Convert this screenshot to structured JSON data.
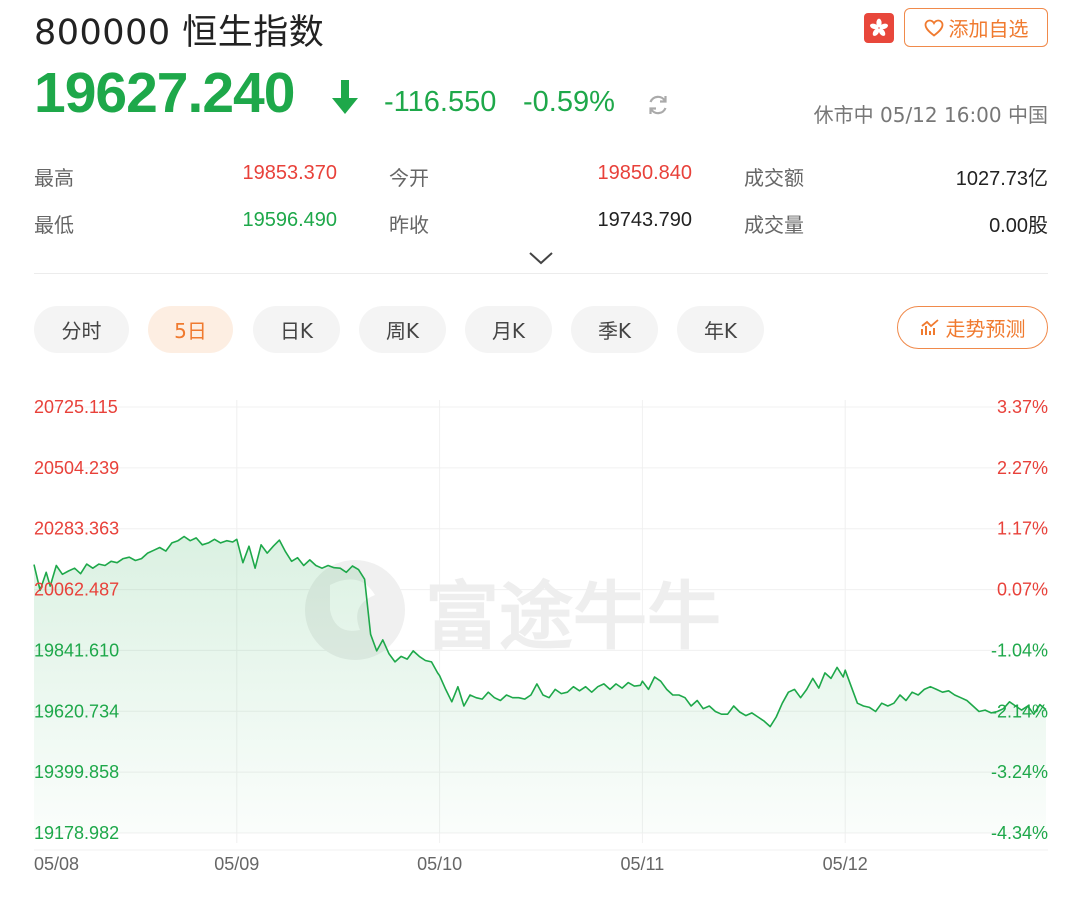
{
  "header": {
    "title": "800000 恒生指数",
    "watch_label": "添加自选",
    "market_flag_icon": "hong-kong-flag-icon"
  },
  "quote": {
    "price": "19627.240",
    "change": "-116.550",
    "change_pct": "-0.59%",
    "status": "休市中 05/12 16:00 中国"
  },
  "stats": {
    "high_label": "最高",
    "high_value": "19853.370",
    "low_label": "最低",
    "low_value": "19596.490",
    "open_label": "今开",
    "open_value": "19850.840",
    "prev_close_label": "昨收",
    "prev_close_value": "19743.790",
    "turnover_label": "成交额",
    "turnover_value": "1027.73亿",
    "volume_label": "成交量",
    "volume_value": "0.00股"
  },
  "tabs": [
    {
      "label": "分时"
    },
    {
      "label": "5日"
    },
    {
      "label": "日K"
    },
    {
      "label": "周K"
    },
    {
      "label": "月K"
    },
    {
      "label": "季K"
    },
    {
      "label": "年K"
    }
  ],
  "active_tab": "5日",
  "trend_label": "走势预测",
  "watermark": "富途牛牛",
  "colors": {
    "up": "#e8413a",
    "down": "#1ea84a",
    "accent": "#f07a2f"
  },
  "chart_data": {
    "type": "area",
    "y_ticks": [
      "20725.115",
      "20504.239",
      "20283.363",
      "20062.487",
      "19841.610",
      "19620.734",
      "19399.858",
      "19178.982"
    ],
    "y_tick_values": [
      20725.115,
      20504.239,
      20283.363,
      20062.487,
      19841.61,
      19620.734,
      19399.858,
      19178.982
    ],
    "pct_ticks": [
      "3.37%",
      "2.27%",
      "1.17%",
      "0.07%",
      "-1.04%",
      "-2.14%",
      "-3.24%",
      "-4.34%"
    ],
    "x_labels": [
      "05/08",
      "05/09",
      "05/10",
      "05/11",
      "05/12"
    ],
    "ylim": [
      19178.982,
      20725.115
    ],
    "grid": true,
    "series": [
      {
        "x": [
          0,
          0.03,
          0.06,
          0.08,
          0.11,
          0.14,
          0.17,
          0.2,
          0.23,
          0.26,
          0.29,
          0.32,
          0.35,
          0.38,
          0.41,
          0.44,
          0.47,
          0.5,
          0.53,
          0.56,
          0.59,
          0.62,
          0.65,
          0.68,
          0.71,
          0.74,
          0.77,
          0.8,
          0.83,
          0.86,
          0.89,
          0.92,
          0.95,
          0.98,
          1.0,
          1.03,
          1.06,
          1.09,
          1.12,
          1.15,
          1.18,
          1.21,
          1.24,
          1.27,
          1.3,
          1.33,
          1.36,
          1.39,
          1.42,
          1.45,
          1.48,
          1.51,
          1.54,
          1.57,
          1.6,
          1.63,
          1.66,
          1.69,
          1.72,
          1.75,
          1.78,
          1.81,
          1.84,
          1.87,
          1.9,
          1.93,
          1.96,
          1.99,
          2.0,
          2.03,
          2.06,
          2.09,
          2.12,
          2.15,
          2.18,
          2.21,
          2.24,
          2.27,
          2.3,
          2.33,
          2.36,
          2.39,
          2.42,
          2.45,
          2.48,
          2.51,
          2.54,
          2.57,
          2.6,
          2.63,
          2.66,
          2.69,
          2.72,
          2.75,
          2.78,
          2.81,
          2.84,
          2.87,
          2.9,
          2.93,
          2.96,
          2.99,
          3.0,
          3.03,
          3.06,
          3.09,
          3.12,
          3.15,
          3.18,
          3.21,
          3.24,
          3.27,
          3.3,
          3.33,
          3.36,
          3.39,
          3.42,
          3.45,
          3.48,
          3.51,
          3.54,
          3.57,
          3.6,
          3.63,
          3.66,
          3.69,
          3.72,
          3.75,
          3.78,
          3.81,
          3.84,
          3.87,
          3.9,
          3.93,
          3.96,
          3.99,
          4.0,
          4.03,
          4.06,
          4.09,
          4.12,
          4.15,
          4.18,
          4.21,
          4.24,
          4.27,
          4.3,
          4.33,
          4.36,
          4.39,
          4.42,
          4.45,
          4.48,
          4.51,
          4.54,
          4.57,
          4.6,
          4.63,
          4.66,
          4.69,
          4.72,
          4.75,
          4.78,
          4.81,
          4.84,
          4.87,
          4.9,
          4.93,
          4.96,
          4.99
        ],
        "values": [
          20153,
          20060,
          20125,
          20075,
          20150,
          20118,
          20130,
          20140,
          20120,
          20155,
          20140,
          20155,
          20150,
          20165,
          20160,
          20175,
          20180,
          20168,
          20175,
          20195,
          20205,
          20215,
          20202,
          20232,
          20240,
          20255,
          20240,
          20250,
          20225,
          20232,
          20245,
          20232,
          20240,
          20235,
          20245,
          20160,
          20220,
          20140,
          20225,
          20195,
          20220,
          20242,
          20200,
          20165,
          20178,
          20150,
          20170,
          20150,
          20140,
          20150,
          20142,
          20140,
          20125,
          20148,
          20135,
          20100,
          19900,
          19840,
          19880,
          19830,
          19800,
          19820,
          19810,
          19840,
          19820,
          19805,
          19800,
          19760,
          19750,
          19700,
          19655,
          19710,
          19640,
          19680,
          19670,
          19665,
          19690,
          19670,
          19660,
          19680,
          19670,
          19670,
          19665,
          19680,
          19720,
          19680,
          19670,
          19700,
          19685,
          19690,
          19710,
          19695,
          19710,
          19690,
          19710,
          19720,
          19700,
          19720,
          19705,
          19725,
          19712,
          19715,
          19730,
          19700,
          19745,
          19730,
          19700,
          19680,
          19680,
          19670,
          19640,
          19660,
          19630,
          19640,
          19620,
          19610,
          19610,
          19640,
          19618,
          19605,
          19615,
          19600,
          19585,
          19565,
          19600,
          19650,
          19690,
          19700,
          19670,
          19700,
          19740,
          19705,
          19760,
          19740,
          19780,
          19745,
          19770,
          19710,
          19650,
          19640,
          19635,
          19620,
          19650,
          19640,
          19650,
          19680,
          19660,
          19690,
          19680,
          19700,
          19710,
          19700,
          19690,
          19695,
          19680,
          19670,
          19660,
          19640,
          19620,
          19625,
          19615,
          19620,
          19630,
          19655,
          19640,
          19625,
          19640,
          19610,
          19645,
          19627
        ]
      }
    ]
  }
}
